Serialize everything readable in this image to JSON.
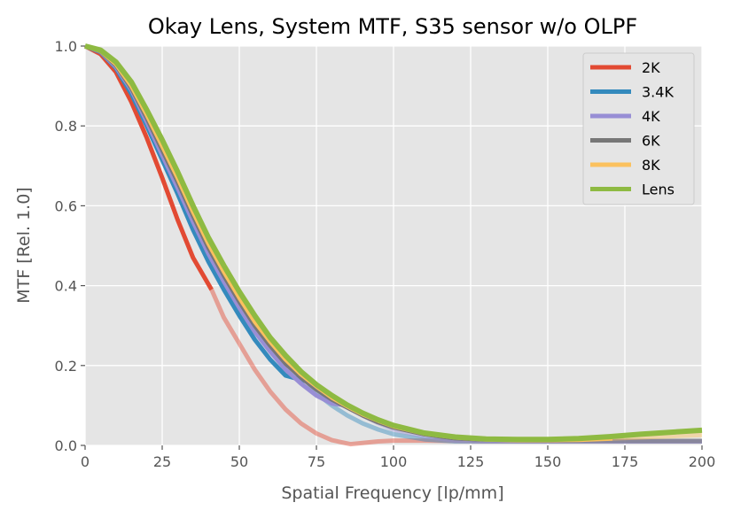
{
  "chart_data": {
    "type": "line",
    "title": "Okay Lens, System MTF, S35 sensor w/o OLPF",
    "xlabel": "Spatial Frequency [lp/mm]",
    "ylabel": "MTF [Rel. 1.0]",
    "xlim": [
      0,
      200
    ],
    "ylim": [
      0,
      1.0
    ],
    "xticks": [
      "0",
      "25",
      "50",
      "75",
      "100",
      "125",
      "150",
      "175",
      "200"
    ],
    "yticks": [
      "0.0",
      "0.2",
      "0.4",
      "0.6",
      "0.8",
      "1.0"
    ],
    "grid": true,
    "legend_position": "top-right",
    "series": [
      {
        "name": "2K",
        "color": "#e24a33",
        "nyquist": 41,
        "x": [
          0,
          5,
          10,
          15,
          20,
          25,
          30,
          35,
          41,
          45,
          50,
          55,
          60,
          65,
          70,
          75,
          80,
          86,
          90,
          95,
          100,
          110,
          120,
          130,
          140,
          150,
          160,
          170,
          180,
          190,
          200
        ],
        "y": [
          1.0,
          0.98,
          0.935,
          0.86,
          0.77,
          0.67,
          0.565,
          0.47,
          0.39,
          0.32,
          0.255,
          0.19,
          0.135,
          0.09,
          0.055,
          0.03,
          0.013,
          0.003,
          0.006,
          0.01,
          0.012,
          0.012,
          0.011,
          0.01,
          0.01,
          0.01,
          0.01,
          0.01,
          0.01,
          0.01,
          0.01
        ]
      },
      {
        "name": "3.4K",
        "color": "#348abd",
        "nyquist": 72,
        "x": [
          0,
          5,
          10,
          15,
          20,
          25,
          30,
          35,
          40,
          45,
          50,
          55,
          60,
          65,
          72,
          75,
          80,
          85,
          90,
          95,
          100,
          110,
          120,
          130,
          140,
          150,
          160,
          170,
          180,
          190,
          200
        ],
        "y": [
          1.0,
          0.985,
          0.945,
          0.88,
          0.8,
          0.715,
          0.63,
          0.54,
          0.46,
          0.39,
          0.325,
          0.265,
          0.215,
          0.175,
          0.16,
          0.13,
          0.1,
          0.075,
          0.055,
          0.04,
          0.028,
          0.015,
          0.01,
          0.01,
          0.01,
          0.01,
          0.01,
          0.01,
          0.01,
          0.01,
          0.01
        ]
      },
      {
        "name": "4K",
        "color": "#988ed5",
        "nyquist": 85,
        "x": [
          0,
          5,
          10,
          15,
          20,
          25,
          30,
          35,
          40,
          45,
          50,
          55,
          60,
          65,
          70,
          75,
          80,
          85,
          90,
          95,
          100,
          110,
          120,
          130,
          140,
          150,
          160,
          170,
          180,
          190,
          200
        ],
        "y": [
          1.0,
          0.986,
          0.948,
          0.89,
          0.81,
          0.727,
          0.645,
          0.56,
          0.48,
          0.41,
          0.345,
          0.285,
          0.235,
          0.19,
          0.155,
          0.125,
          0.105,
          0.1,
          0.075,
          0.056,
          0.04,
          0.022,
          0.012,
          0.01,
          0.01,
          0.01,
          0.01,
          0.01,
          0.01,
          0.01,
          0.01
        ]
      },
      {
        "name": "6K",
        "color": "#777777",
        "nyquist": 128,
        "x": [
          0,
          5,
          10,
          15,
          20,
          25,
          30,
          35,
          40,
          45,
          50,
          55,
          60,
          65,
          70,
          75,
          80,
          85,
          90,
          95,
          100,
          110,
          120,
          128,
          140,
          150,
          160,
          170,
          180,
          190,
          200
        ],
        "y": [
          1.0,
          0.987,
          0.952,
          0.895,
          0.82,
          0.74,
          0.66,
          0.575,
          0.495,
          0.425,
          0.36,
          0.3,
          0.25,
          0.205,
          0.17,
          0.14,
          0.115,
          0.095,
          0.075,
          0.058,
          0.045,
          0.028,
          0.018,
          0.015,
          0.013,
          0.012,
          0.012,
          0.012,
          0.012,
          0.012,
          0.012
        ]
      },
      {
        "name": "8K",
        "color": "#fbc15e",
        "nyquist": 171,
        "x": [
          0,
          5,
          10,
          15,
          20,
          25,
          30,
          35,
          40,
          45,
          50,
          55,
          60,
          65,
          70,
          75,
          80,
          85,
          90,
          95,
          100,
          110,
          120,
          130,
          140,
          150,
          160,
          171,
          180,
          190,
          200
        ],
        "y": [
          1.0,
          0.988,
          0.955,
          0.9,
          0.828,
          0.75,
          0.67,
          0.585,
          0.505,
          0.435,
          0.37,
          0.31,
          0.26,
          0.215,
          0.178,
          0.148,
          0.12,
          0.098,
          0.078,
          0.062,
          0.048,
          0.03,
          0.02,
          0.015,
          0.013,
          0.013,
          0.014,
          0.017,
          0.02,
          0.023,
          0.026
        ]
      },
      {
        "name": "Lens",
        "color": "#8eba42",
        "x": [
          0,
          5,
          10,
          15,
          20,
          25,
          30,
          35,
          40,
          45,
          50,
          55,
          60,
          65,
          70,
          75,
          80,
          85,
          90,
          95,
          100,
          110,
          120,
          130,
          140,
          150,
          160,
          170,
          180,
          190,
          200
        ],
        "y": [
          1.0,
          0.99,
          0.96,
          0.91,
          0.84,
          0.765,
          0.685,
          0.6,
          0.52,
          0.45,
          0.385,
          0.325,
          0.27,
          0.225,
          0.185,
          0.152,
          0.125,
          0.101,
          0.081,
          0.064,
          0.05,
          0.031,
          0.021,
          0.016,
          0.015,
          0.015,
          0.017,
          0.022,
          0.028,
          0.033,
          0.038
        ]
      }
    ]
  }
}
